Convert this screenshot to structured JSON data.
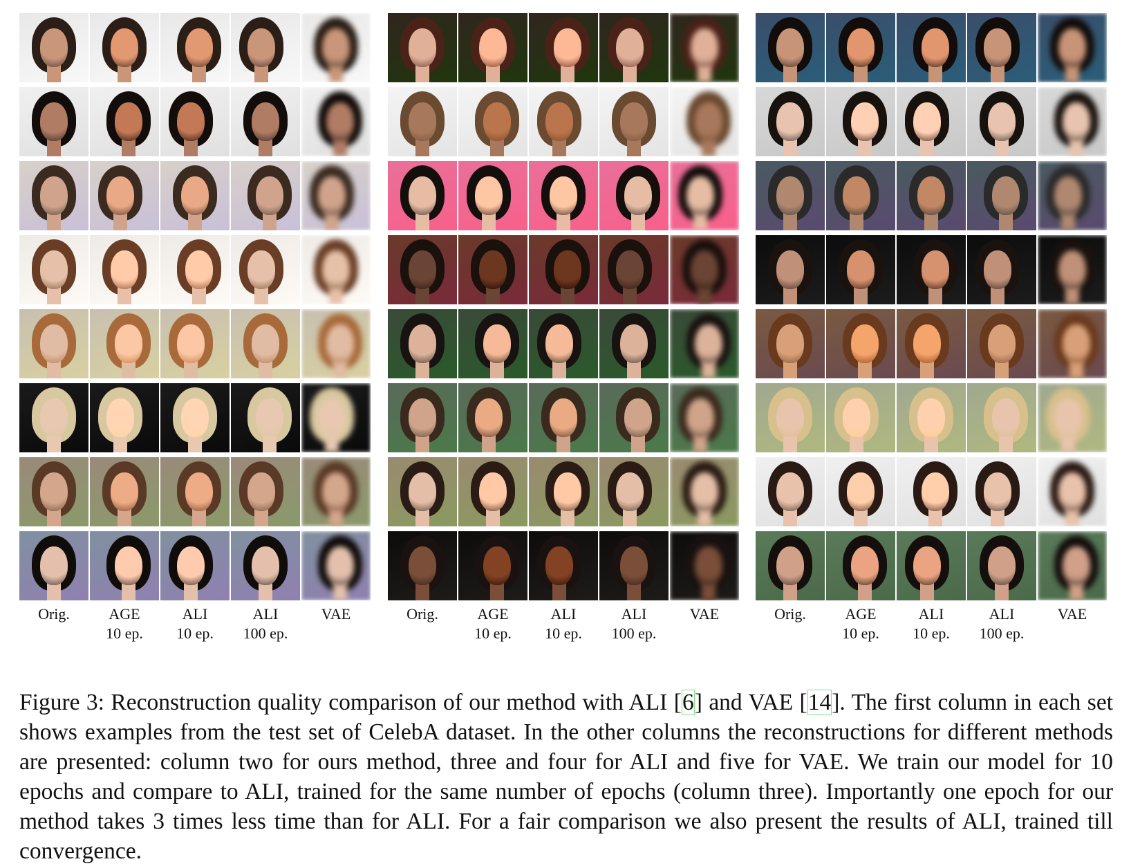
{
  "figure": {
    "column_labels": [
      {
        "line1": "Orig.",
        "line2": ""
      },
      {
        "line1": "AGE",
        "line2": "10 ep."
      },
      {
        "line1": "ALI",
        "line2": "10 ep."
      },
      {
        "line1": "ALI",
        "line2": "100 ep."
      },
      {
        "line1": "VAE",
        "line2": ""
      }
    ],
    "sets": [
      {
        "rows": [
          {
            "bg": "#e8e8e8",
            "hair": "#2a1e16",
            "skin": "#c9967a"
          },
          {
            "bg": "#f0f0f0",
            "hair": "#120c0a",
            "skin": "#b07c64"
          },
          {
            "bg": "#d8d0c8",
            "hair": "#3a2a20",
            "skin": "#d0a48c"
          },
          {
            "bg": "#eeeae6",
            "hair": "#6a3e26",
            "skin": "#e6c0a8"
          },
          {
            "bg": "#c8c0b0",
            "hair": "#a86a3a",
            "skin": "#e0bca4"
          },
          {
            "bg": "#1a1a1a",
            "hair": "#d8c8a0",
            "skin": "#e8c8b0"
          },
          {
            "bg": "#9a8a7a",
            "hair": "#5a3a26",
            "skin": "#d4a68c"
          },
          {
            "bg": "#8090a0",
            "hair": "#100c0a",
            "skin": "#e4c0ac"
          }
        ]
      },
      {
        "rows": [
          {
            "bg": "#30261e",
            "hair": "#4a2218",
            "skin": "#e0b098"
          },
          {
            "bg": "#f4f4f4",
            "hair": "#6a4a30",
            "skin": "#a8785c"
          },
          {
            "bg": "#e8709a",
            "hair": "#140e0c",
            "skin": "#e6bca4"
          },
          {
            "bg": "#6a3a2a",
            "hair": "#1a100c",
            "skin": "#6a4434"
          },
          {
            "bg": "#3a4a3a",
            "hair": "#181210",
            "skin": "#dcb29a"
          },
          {
            "bg": "#5a6a5a",
            "hair": "#3a2a1e",
            "skin": "#d0a48a"
          },
          {
            "bg": "#9a8a70",
            "hair": "#2a1c14",
            "skin": "#e4bea6"
          },
          {
            "bg": "#0e0c0a",
            "hair": "#1a1210",
            "skin": "#7a4e38"
          }
        ]
      },
      {
        "rows": [
          {
            "bg": "#3a4e6a",
            "hair": "#120c0a",
            "skin": "#c89478"
          },
          {
            "bg": "#d8d8d8",
            "hair": "#18120e",
            "skin": "#e8c4b0"
          },
          {
            "bg": "#4a5a60",
            "hair": "#2a2a2a",
            "skin": "#b08870"
          },
          {
            "bg": "#0c0c0c",
            "hair": "#1a120e",
            "skin": "#c09078"
          },
          {
            "bg": "#7a5a40",
            "hair": "#6a3a1e",
            "skin": "#d8a078"
          },
          {
            "bg": "#a0a890",
            "hair": "#d8c08c",
            "skin": "#e8c4ac"
          },
          {
            "bg": "#f0f0f0",
            "hair": "#2a1a14",
            "skin": "#e8c2aa"
          },
          {
            "bg": "#5a7a5a",
            "hair": "#140e0c",
            "skin": "#d0a088"
          }
        ]
      }
    ]
  },
  "caption": {
    "part1": "Figure 3: Reconstruction quality comparison of our method with ALI [",
    "ref1": "6",
    "part2": "] and VAE [",
    "ref2": "14",
    "part3": "]. The first column in each set shows examples from the test set of CelebA dataset. In the other columns the reconstructions for different methods are presented: column two for ours method, three and four for ALI and five for VAE. We train our model for 10 epochs and compare to ALI, trained for the same number of epochs (column three). Importantly one epoch for our method takes 3 times less time than for ALI. For a fair comparison we also present the results of ALI, trained till convergence."
  }
}
